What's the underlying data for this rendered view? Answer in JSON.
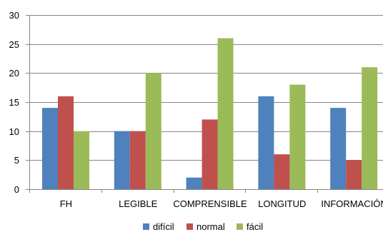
{
  "chart_data": {
    "type": "bar",
    "categories": [
      "FH",
      "LEGIBLE",
      "COMPRENSIBLE",
      "LONGITUD",
      "INFORMACIÓN"
    ],
    "series": [
      {
        "name": "difícil",
        "values": [
          14,
          10,
          2,
          16,
          14
        ],
        "color": "#4F81BD"
      },
      {
        "name": "normal",
        "values": [
          16,
          10,
          12,
          6,
          5
        ],
        "color": "#C0504D"
      },
      {
        "name": "fácil",
        "values": [
          10,
          20,
          26,
          18,
          21
        ],
        "color": "#9BBB59"
      }
    ],
    "y_ticks": [
      "0",
      "5",
      "10",
      "15",
      "20",
      "25",
      "30"
    ],
    "ylim": [
      0,
      30
    ],
    "grid": true,
    "legend_position": "bottom"
  }
}
